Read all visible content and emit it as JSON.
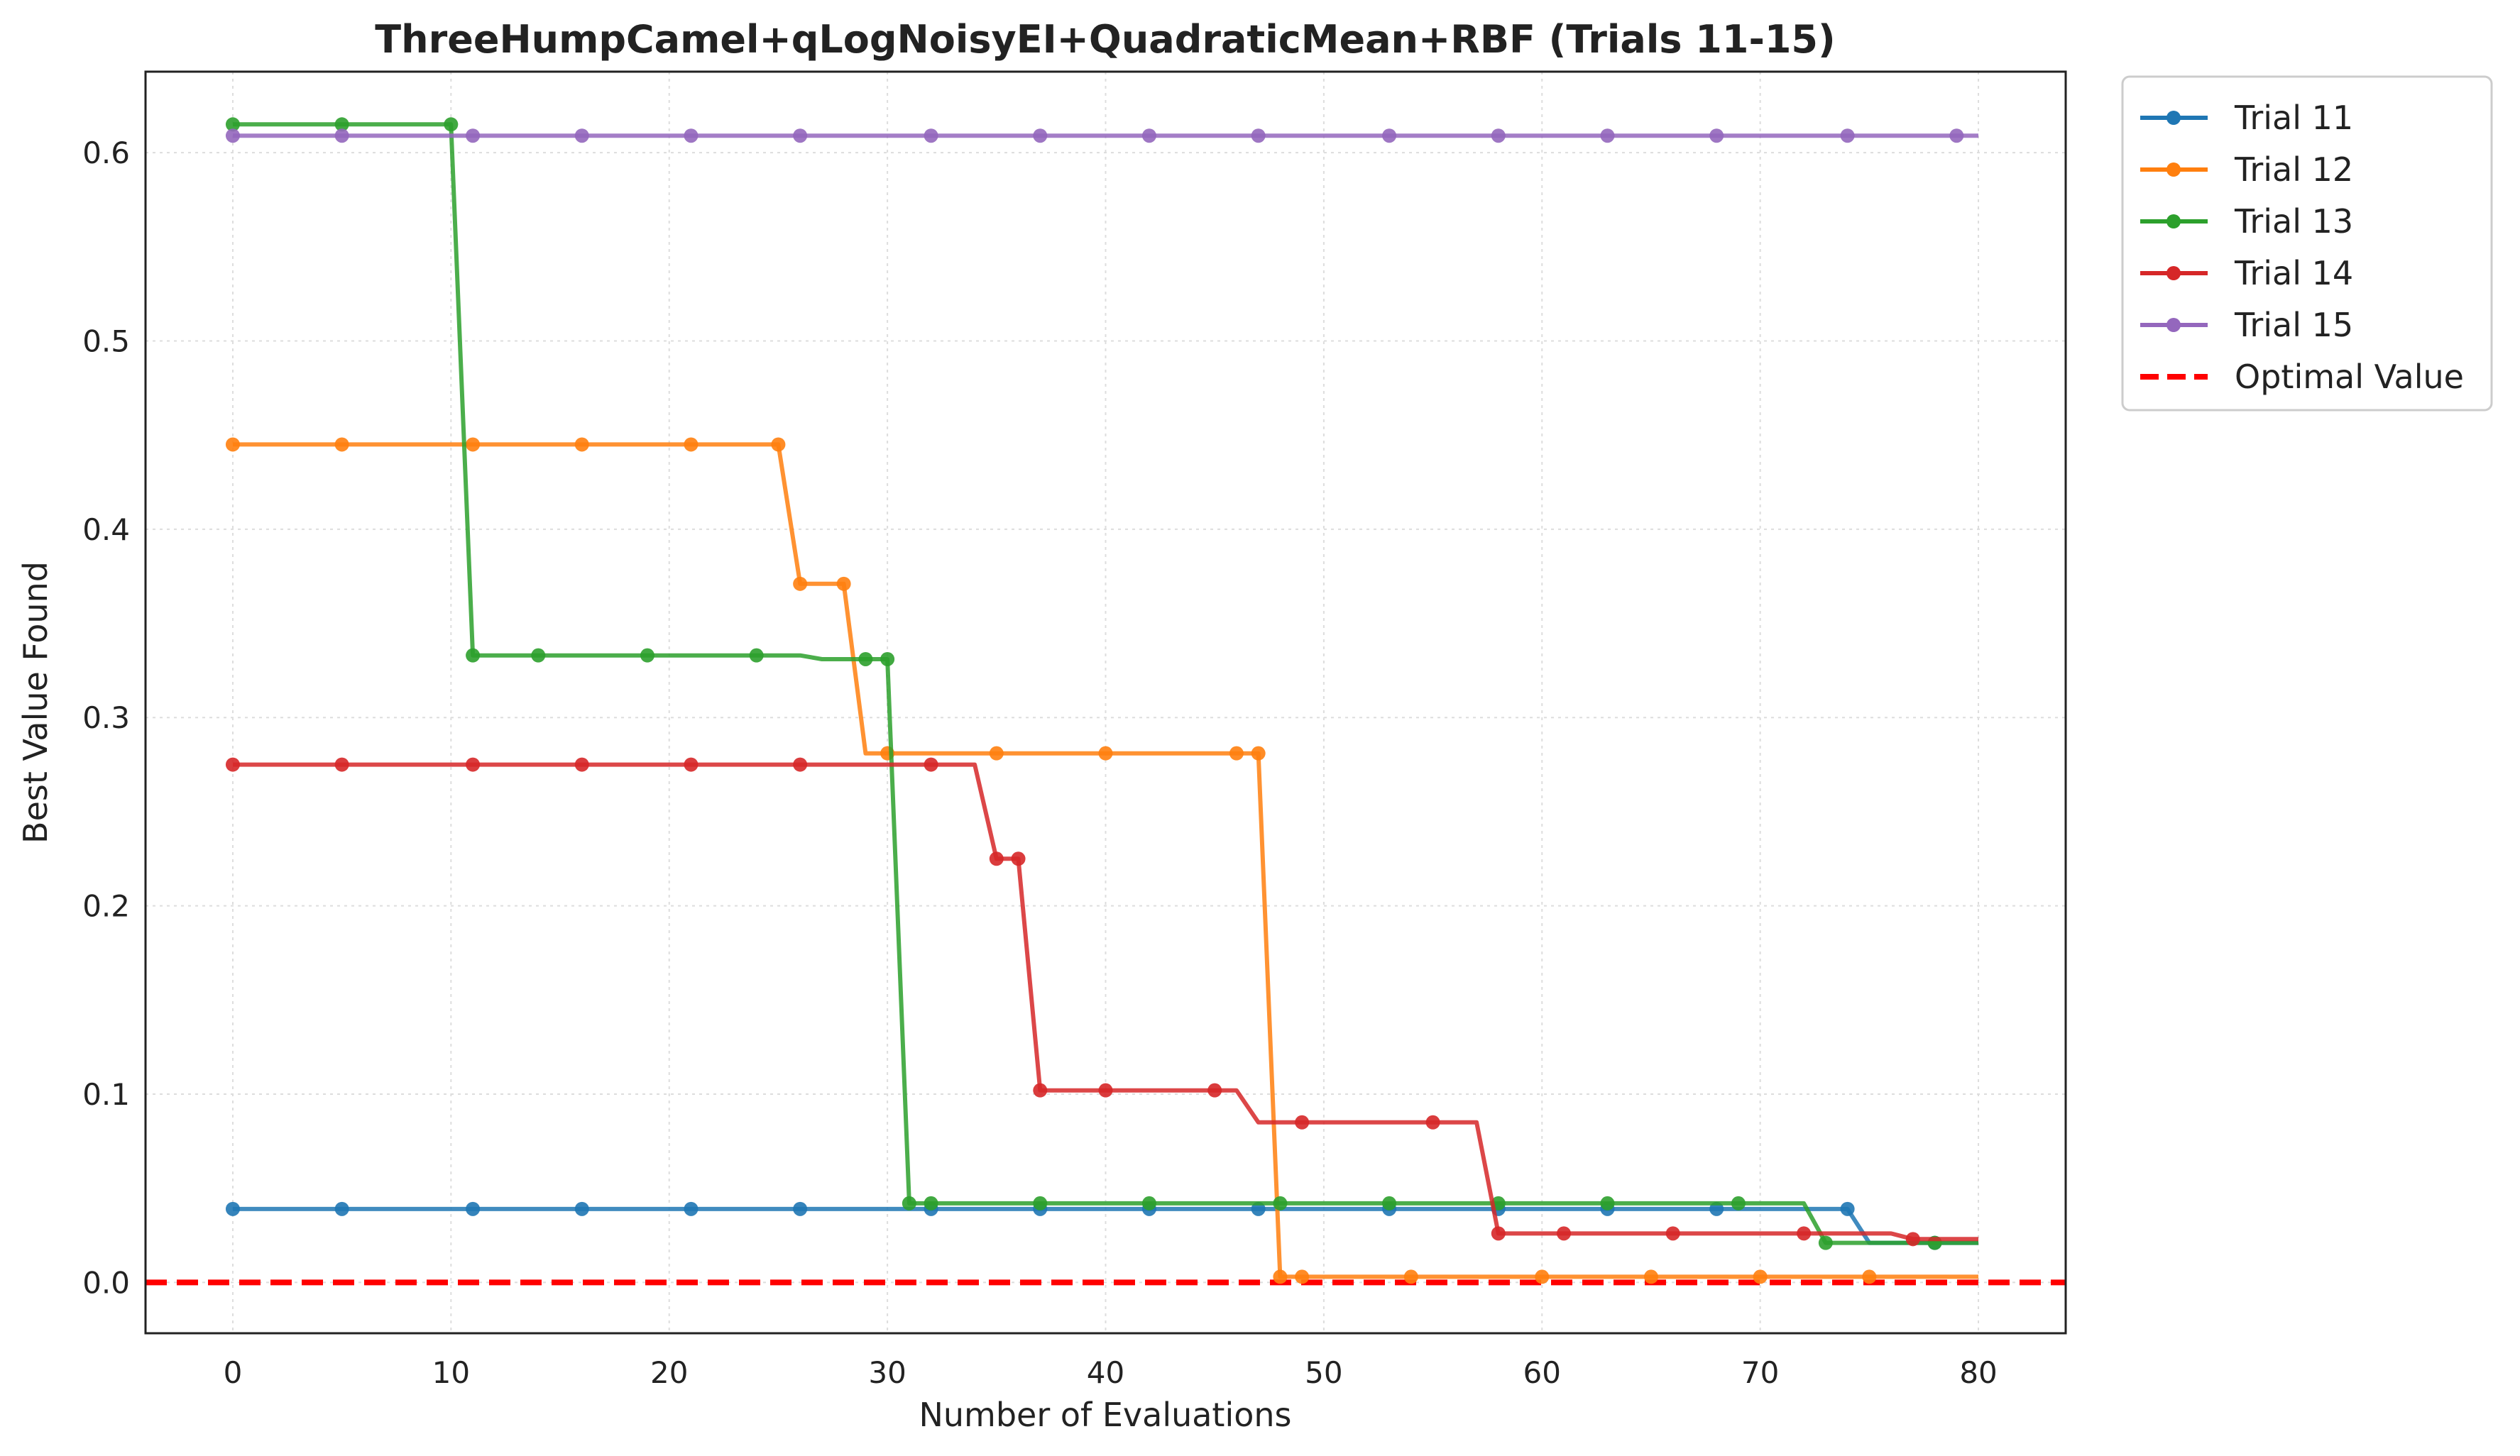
{
  "chart_data": {
    "type": "line",
    "title": "ThreeHumpCamel+qLogNoisyEI+QuadraticMean+RBF (Trials 11-15)",
    "xlabel": "Number of Evaluations",
    "ylabel": "Best Value Found",
    "xlim": [
      -4,
      84
    ],
    "ylim": [
      -0.027,
      0.643
    ],
    "xticks": [
      0,
      10,
      20,
      30,
      40,
      50,
      60,
      70,
      80
    ],
    "xtick_labels": [
      "0",
      "10",
      "20",
      "30",
      "40",
      "50",
      "60",
      "70",
      "80"
    ],
    "yticks": [
      0.0,
      0.1,
      0.2,
      0.3,
      0.4,
      0.5,
      0.6
    ],
    "ytick_labels": [
      "0.0",
      "0.1",
      "0.2",
      "0.3",
      "0.4",
      "0.5",
      "0.6"
    ],
    "grid": true,
    "legend_position": "outside-top-right",
    "series": [
      {
        "name": "Trial 11",
        "color": "#1f77b4",
        "line": [
          [
            0,
            0.039
          ],
          [
            74,
            0.039
          ],
          [
            75,
            0.021
          ],
          [
            80,
            0.021
          ]
        ],
        "markers": [
          [
            0,
            0.039
          ],
          [
            5,
            0.039
          ],
          [
            11,
            0.039
          ],
          [
            16,
            0.039
          ],
          [
            21,
            0.039
          ],
          [
            26,
            0.039
          ],
          [
            32,
            0.039
          ],
          [
            37,
            0.039
          ],
          [
            42,
            0.039
          ],
          [
            47,
            0.039
          ],
          [
            53,
            0.039
          ],
          [
            58,
            0.039
          ],
          [
            63,
            0.039
          ],
          [
            68,
            0.039
          ],
          [
            74,
            0.039
          ],
          [
            78,
            0.021
          ]
        ]
      },
      {
        "name": "Trial 12",
        "color": "#ff7f0e",
        "line": [
          [
            0,
            0.445
          ],
          [
            25,
            0.445
          ],
          [
            26,
            0.371
          ],
          [
            28,
            0.371
          ],
          [
            29,
            0.281
          ],
          [
            47,
            0.281
          ],
          [
            48,
            0.003
          ],
          [
            80,
            0.003
          ]
        ],
        "markers": [
          [
            0,
            0.445
          ],
          [
            5,
            0.445
          ],
          [
            11,
            0.445
          ],
          [
            16,
            0.445
          ],
          [
            21,
            0.445
          ],
          [
            25,
            0.445
          ],
          [
            26,
            0.371
          ],
          [
            28,
            0.371
          ],
          [
            30,
            0.281
          ],
          [
            35,
            0.281
          ],
          [
            40,
            0.281
          ],
          [
            46,
            0.281
          ],
          [
            47,
            0.281
          ],
          [
            48,
            0.003
          ],
          [
            49,
            0.003
          ],
          [
            54,
            0.003
          ],
          [
            60,
            0.003
          ],
          [
            65,
            0.003
          ],
          [
            70,
            0.003
          ],
          [
            75,
            0.003
          ]
        ]
      },
      {
        "name": "Trial 13",
        "color": "#2ca02c",
        "line": [
          [
            0,
            0.615
          ],
          [
            10,
            0.615
          ],
          [
            11,
            0.333
          ],
          [
            26,
            0.333
          ],
          [
            27,
            0.331
          ],
          [
            30,
            0.331
          ],
          [
            31,
            0.042
          ],
          [
            72,
            0.042
          ],
          [
            73,
            0.021
          ],
          [
            80,
            0.021
          ]
        ],
        "markers": [
          [
            0,
            0.615
          ],
          [
            5,
            0.615
          ],
          [
            10,
            0.615
          ],
          [
            11,
            0.333
          ],
          [
            14,
            0.333
          ],
          [
            19,
            0.333
          ],
          [
            24,
            0.333
          ],
          [
            29,
            0.331
          ],
          [
            30,
            0.331
          ],
          [
            31,
            0.042
          ],
          [
            32,
            0.042
          ],
          [
            37,
            0.042
          ],
          [
            42,
            0.042
          ],
          [
            48,
            0.042
          ],
          [
            53,
            0.042
          ],
          [
            58,
            0.042
          ],
          [
            63,
            0.042
          ],
          [
            69,
            0.042
          ],
          [
            73,
            0.021
          ],
          [
            78,
            0.021
          ]
        ]
      },
      {
        "name": "Trial 14",
        "color": "#d62728",
        "line": [
          [
            0,
            0.275
          ],
          [
            34,
            0.275
          ],
          [
            35,
            0.225
          ],
          [
            36,
            0.225
          ],
          [
            37,
            0.102
          ],
          [
            46,
            0.102
          ],
          [
            47,
            0.085
          ],
          [
            57,
            0.085
          ],
          [
            58,
            0.026
          ],
          [
            76,
            0.026
          ],
          [
            77,
            0.023
          ],
          [
            80,
            0.023
          ]
        ],
        "markers": [
          [
            0,
            0.275
          ],
          [
            5,
            0.275
          ],
          [
            11,
            0.275
          ],
          [
            16,
            0.275
          ],
          [
            21,
            0.275
          ],
          [
            26,
            0.275
          ],
          [
            32,
            0.275
          ],
          [
            35,
            0.225
          ],
          [
            36,
            0.225
          ],
          [
            37,
            0.102
          ],
          [
            40,
            0.102
          ],
          [
            45,
            0.102
          ],
          [
            49,
            0.085
          ],
          [
            55,
            0.085
          ],
          [
            58,
            0.026
          ],
          [
            61,
            0.026
          ],
          [
            66,
            0.026
          ],
          [
            72,
            0.026
          ],
          [
            77,
            0.023
          ]
        ]
      },
      {
        "name": "Trial 15",
        "color": "#9467bd",
        "line": [
          [
            0,
            0.609
          ],
          [
            80,
            0.609
          ]
        ],
        "markers": [
          [
            0,
            0.609
          ],
          [
            5,
            0.609
          ],
          [
            11,
            0.609
          ],
          [
            16,
            0.609
          ],
          [
            21,
            0.609
          ],
          [
            26,
            0.609
          ],
          [
            32,
            0.609
          ],
          [
            37,
            0.609
          ],
          [
            42,
            0.609
          ],
          [
            47,
            0.609
          ],
          [
            53,
            0.609
          ],
          [
            58,
            0.609
          ],
          [
            63,
            0.609
          ],
          [
            68,
            0.609
          ],
          [
            74,
            0.609
          ],
          [
            79,
            0.609
          ]
        ]
      }
    ],
    "reference_line": {
      "name": "Optimal Value",
      "y": 0.0,
      "color": "#ff0000",
      "style": "dashed"
    }
  }
}
